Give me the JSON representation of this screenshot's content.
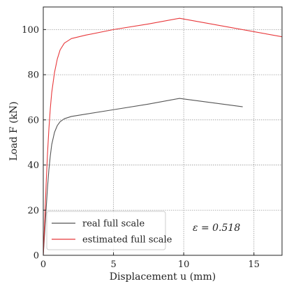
{
  "chart_data": {
    "type": "line",
    "title": "",
    "xlabel": "Displacement u (mm)",
    "ylabel": "Load F (kN)",
    "xlim": [
      0,
      17
    ],
    "ylim": [
      0,
      110
    ],
    "xticks": [
      0,
      5,
      10,
      15
    ],
    "yticks": [
      0,
      20,
      40,
      60,
      80,
      100
    ],
    "grid": true,
    "legend_position": "lower-left",
    "annotation": "ε = 0.518",
    "series": [
      {
        "name": "real full scale",
        "color": "#555555",
        "x": [
          0,
          0.1,
          0.2,
          0.3,
          0.4,
          0.5,
          0.6,
          0.8,
          1.0,
          1.2,
          1.5,
          2.0,
          3.0,
          5.0,
          7.5,
          9.7,
          14.2
        ],
        "y": [
          0,
          10,
          20,
          30,
          38,
          44,
          49,
          54.5,
          57.5,
          59.2,
          60.5,
          61.5,
          62.5,
          64.5,
          67,
          69.5,
          65.8
        ]
      },
      {
        "name": "estimated full scale",
        "color": "#e8373a",
        "x": [
          0,
          0.1,
          0.2,
          0.3,
          0.4,
          0.5,
          0.6,
          0.8,
          1.0,
          1.2,
          1.5,
          2.0,
          3.0,
          5.0,
          7.5,
          9.7,
          17
        ],
        "y": [
          0,
          15,
          31,
          45,
          56,
          65,
          72,
          81,
          87,
          91,
          94,
          96,
          97.5,
          100,
          102.5,
          105,
          96.8
        ]
      }
    ]
  }
}
